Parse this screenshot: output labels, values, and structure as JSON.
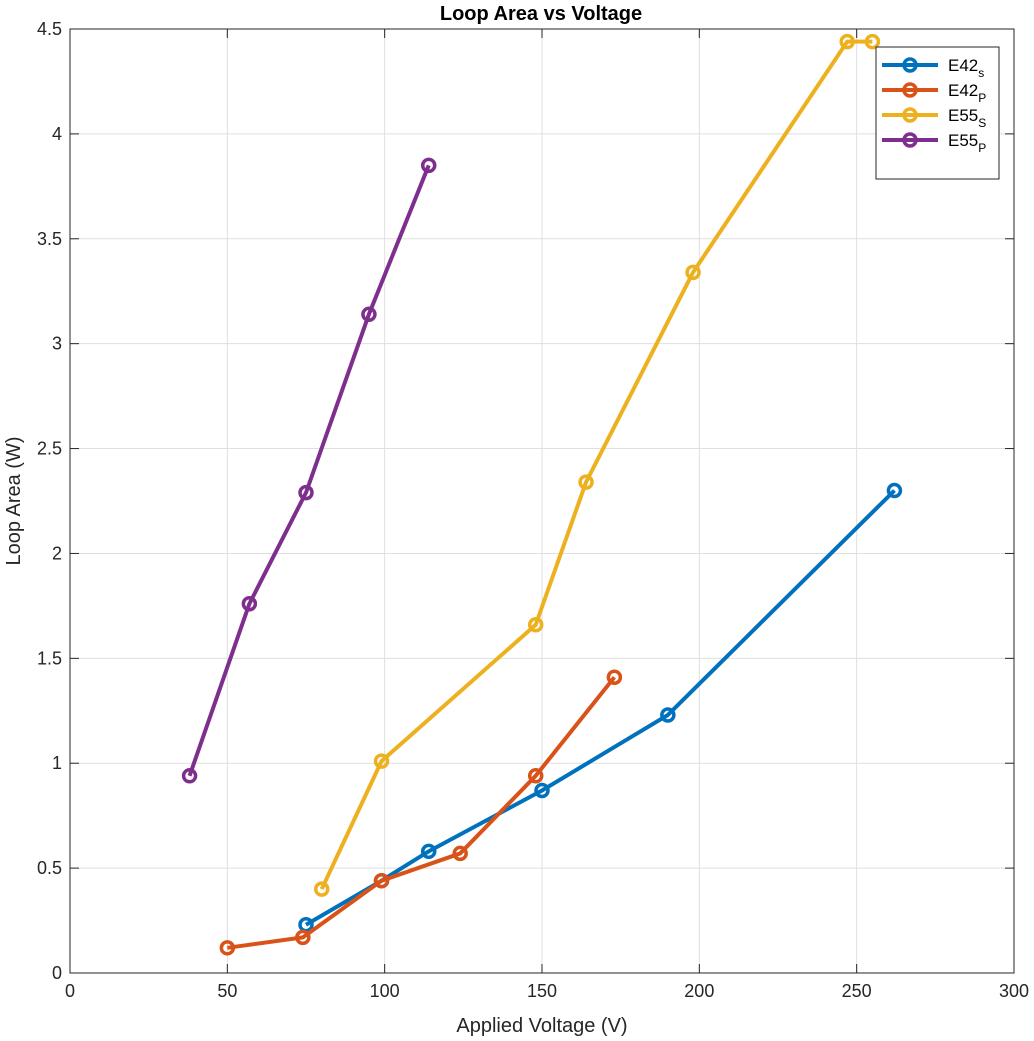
{
  "chart_data": {
    "type": "line",
    "title": "Loop Area vs Voltage",
    "xlabel": "Applied Voltage (V)",
    "ylabel": "Loop Area (W)",
    "xlim": [
      0,
      300
    ],
    "ylim": [
      0,
      4.5
    ],
    "xticks": [
      0,
      50,
      100,
      150,
      200,
      250,
      300
    ],
    "xtick_labels": [
      "0",
      "50",
      "100",
      "150",
      "200",
      "250",
      "300"
    ],
    "yticks": [
      0,
      0.5,
      1,
      1.5,
      2,
      2.5,
      3,
      3.5,
      4,
      4.5
    ],
    "ytick_labels": [
      "0",
      "0.5",
      "1",
      "1.5",
      "2",
      "2.5",
      "3",
      "3.5",
      "4",
      "4.5"
    ],
    "grid": true,
    "legend_position": "top-right",
    "series": [
      {
        "name": "E42",
        "name_sub": "s",
        "color": "#0072BD",
        "x": [
          75,
          99,
          114,
          150,
          190,
          262
        ],
        "y": [
          0.23,
          0.44,
          0.58,
          0.87,
          1.23,
          2.3
        ]
      },
      {
        "name": "E42",
        "name_sub": "P",
        "color": "#D95319",
        "x": [
          50,
          74,
          99,
          124,
          148,
          173
        ],
        "y": [
          0.12,
          0.17,
          0.44,
          0.57,
          0.94,
          1.41
        ]
      },
      {
        "name": "E55",
        "name_sub": "S",
        "color": "#EDB120",
        "x": [
          80,
          99,
          148,
          164,
          198,
          247,
          255
        ],
        "y": [
          0.4,
          1.01,
          1.66,
          2.34,
          3.34,
          4.44,
          4.44
        ]
      },
      {
        "name": "E55",
        "name_sub": "P",
        "color": "#7E2F8E",
        "x": [
          38,
          57,
          75,
          95,
          114
        ],
        "y": [
          0.94,
          1.76,
          2.29,
          3.14,
          3.85
        ]
      }
    ]
  }
}
